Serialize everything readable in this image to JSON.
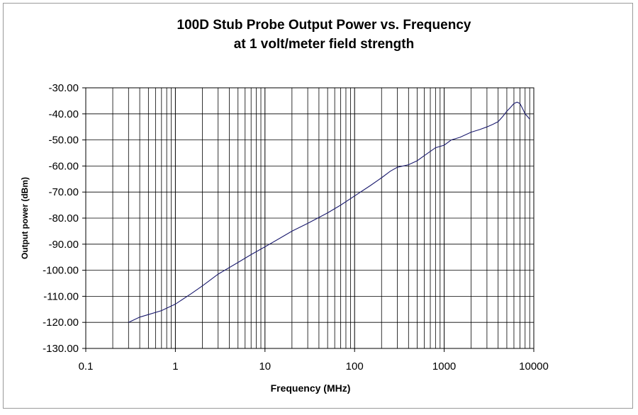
{
  "chart_data": {
    "type": "line",
    "title": "100D Stub Probe Output Power vs. Frequency",
    "subtitle": "at 1 volt/meter field strength",
    "xlabel": "Frequency (MHz)",
    "ylabel": "Output power (dBm)",
    "x_scale": "log",
    "xlim": [
      0.1,
      10000
    ],
    "ylim": [
      -130,
      -30
    ],
    "x_ticks": [
      "0.1",
      "1",
      "10",
      "100",
      "1000",
      "10000"
    ],
    "y_ticks": [
      "-30.00",
      "-40.00",
      "-50.00",
      "-60.00",
      "-70.00",
      "-80.00",
      "-90.00",
      "-100.00",
      "-110.00",
      "-120.00",
      "-130.00"
    ],
    "grid": true,
    "line_color": "#1a1a6e",
    "series": [
      {
        "x": [
          0.3,
          0.4,
          0.5,
          0.7,
          1,
          1.5,
          2,
          3,
          5,
          7,
          10,
          15,
          20,
          30,
          50,
          70,
          100,
          150,
          200,
          250,
          300,
          400,
          500,
          600,
          800,
          1000,
          1200,
          1500,
          2000,
          2500,
          3000,
          3500,
          4000,
          4500,
          5000,
          5500,
          6000,
          6500,
          7000,
          7500,
          8000,
          8500,
          9000
        ],
        "y": [
          -120,
          -118,
          -117,
          -115.5,
          -113,
          -109,
          -106,
          -101.5,
          -97,
          -94,
          -91,
          -87.5,
          -85,
          -82,
          -78,
          -75,
          -71.5,
          -67.5,
          -64.5,
          -62,
          -60.5,
          -59.5,
          -58,
          -56,
          -53,
          -52,
          -50,
          -49,
          -47,
          -46,
          -45,
          -44,
          -43,
          -41,
          -39,
          -37.5,
          -36,
          -35.5,
          -36,
          -38,
          -40,
          -41,
          -42
        ]
      }
    ]
  }
}
